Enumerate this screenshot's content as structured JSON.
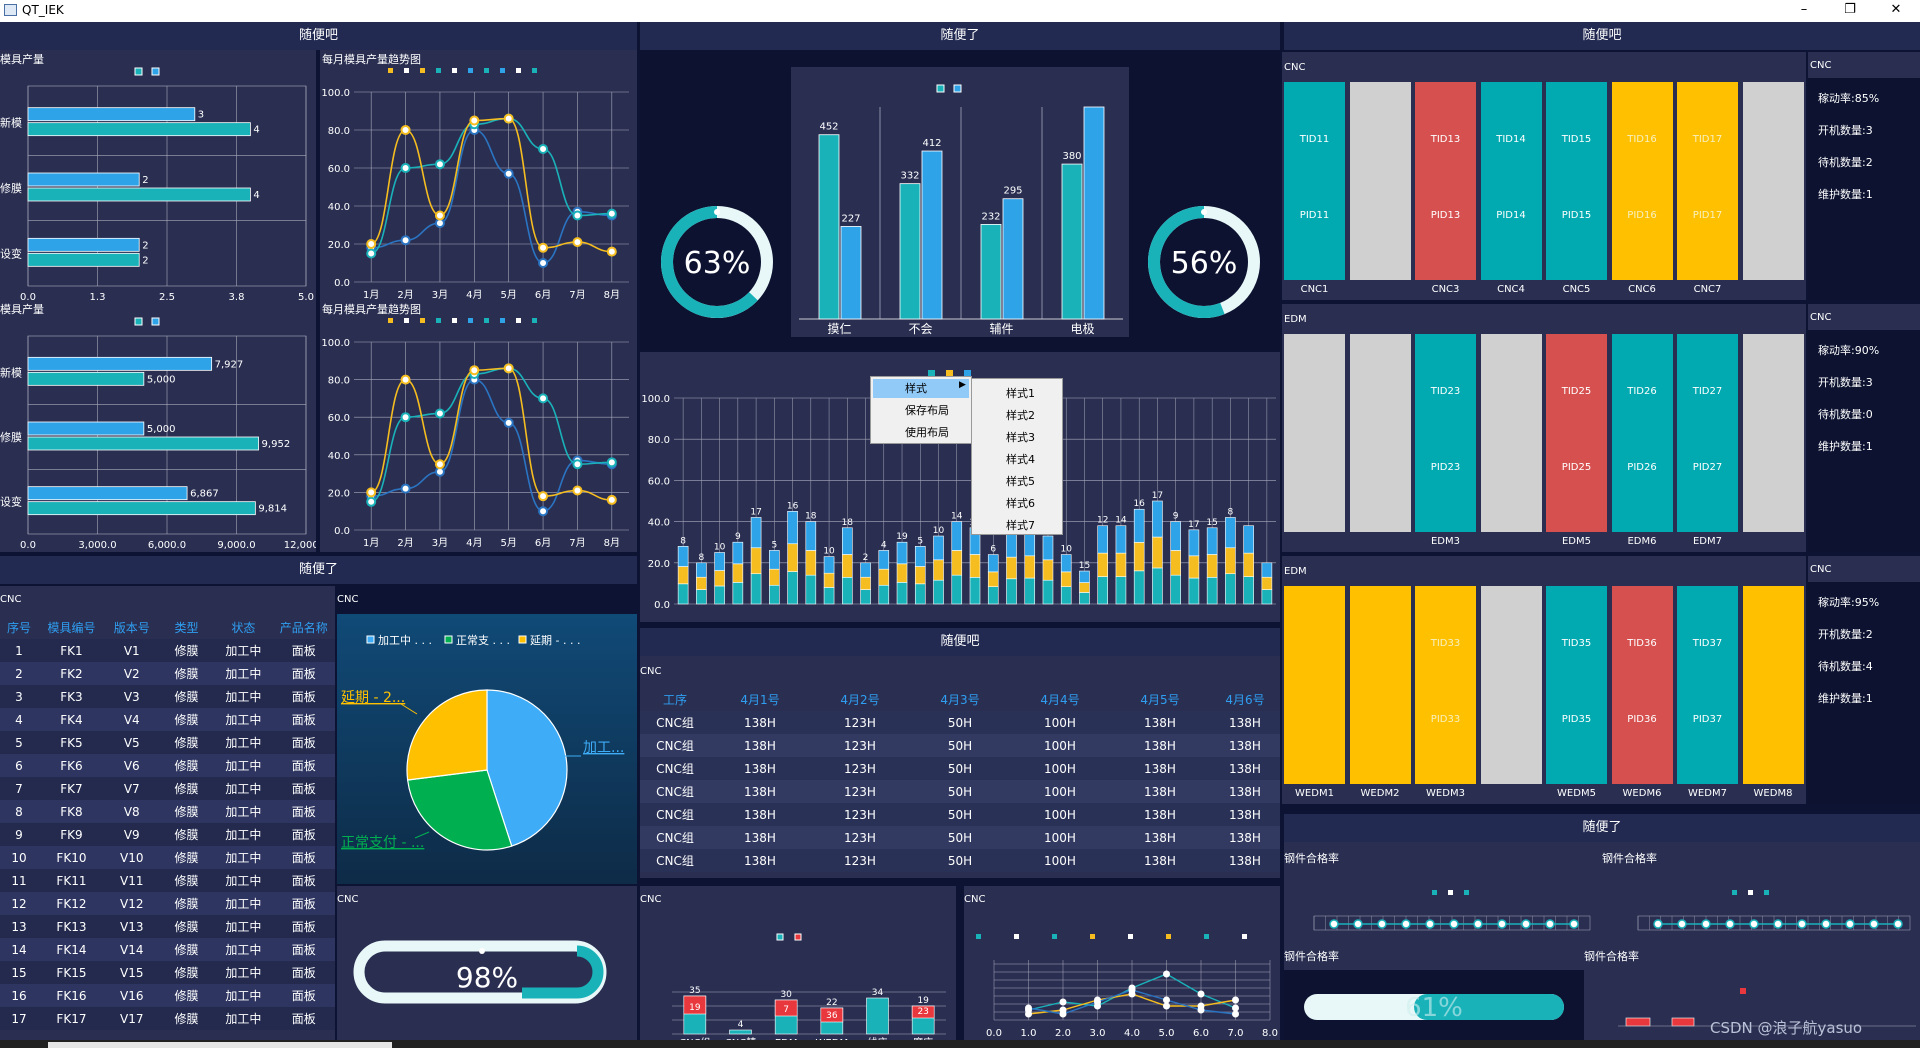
{
  "window": {
    "title": "QT_IEK",
    "minimize": "–",
    "maximize": "❐",
    "close": "✕"
  },
  "panels": {
    "left_top": "随便吧",
    "mid_top": "随便了",
    "right_top": "随便吧",
    "left_mid": "随便了",
    "mid_mid": "随便吧",
    "right_mid": "随便了"
  },
  "left": {
    "bar1": {
      "title": "模具产量",
      "cats": [
        "新模",
        "修膜",
        "设变"
      ],
      "a": [
        3,
        2,
        2
      ],
      "b": [
        4,
        4,
        2
      ],
      "a_lab": [
        "3",
        "2",
        "2"
      ],
      "b_lab": [
        "4",
        "4",
        "2"
      ],
      "ticks": [
        "0.0",
        "1.3",
        "2.5",
        "3.8",
        "5.0"
      ],
      "max": 5
    },
    "bar2": {
      "title": "模具产量",
      "cats": [
        "新模",
        "修膜",
        "设变"
      ],
      "a": [
        7927,
        5000,
        6867
      ],
      "b": [
        5000,
        9952,
        9814
      ],
      "a_lab": [
        "7,927",
        "5,000",
        "6,867"
      ],
      "b_lab": [
        "5,000",
        "9,952",
        "9,814"
      ],
      "ticks": [
        "0.0",
        "3,000.0",
        "6,000.0",
        "9,000.0",
        "12,000.0"
      ],
      "max": 12000
    },
    "line1": {
      "title": "每月模具产量趋势图"
    },
    "line2": {
      "title": "每月模具产量趋势图"
    }
  },
  "chart_data": [
    {
      "type": "bar",
      "title": "模具产量",
      "categories": [
        "新模",
        "修膜",
        "设变"
      ],
      "series": [
        {
          "values": [
            3,
            2,
            2
          ]
        },
        {
          "values": [
            4,
            4,
            2
          ]
        }
      ],
      "xlim": [
        0,
        5
      ]
    },
    {
      "type": "bar",
      "title": "模具产量",
      "categories": [
        "新模",
        "修膜",
        "设变"
      ],
      "series": [
        {
          "values": [
            7927,
            5000,
            6867
          ]
        },
        {
          "values": [
            5000,
            9952,
            9814
          ]
        }
      ],
      "xlim": [
        0,
        12000
      ]
    },
    {
      "type": "line",
      "title": "每月模具产量趋势图",
      "x": [
        "1月",
        "2月",
        "3月",
        "4月",
        "5月",
        "6月",
        "7月",
        "8月"
      ],
      "series": [
        {
          "values": [
            18,
            22,
            31,
            80,
            57,
            10,
            37,
            35
          ]
        },
        {
          "values": [
            15,
            60,
            62,
            83,
            86,
            70,
            35,
            36
          ]
        },
        {
          "values": [
            20,
            80,
            35,
            85,
            86,
            18,
            21,
            16
          ]
        }
      ],
      "ylim": [
        0,
        100
      ]
    },
    {
      "type": "bar",
      "categories": [
        "摸仁",
        "不会",
        "辅件",
        "电极"
      ],
      "series": [
        {
          "values": [
            452,
            332,
            232,
            380
          ]
        },
        {
          "values": [
            227,
            412,
            295,
            520
          ]
        }
      ]
    },
    {
      "type": "pie",
      "labels": [
        "加工中",
        "正常支付",
        "延期"
      ],
      "values": [
        45,
        28,
        27
      ]
    }
  ],
  "gauges": {
    "g1": "63%",
    "g2": "56%",
    "g3": "98%",
    "g4": "61%"
  },
  "mid_bar": {
    "cats": [
      "摸仁",
      "不会",
      "辅件",
      "电极"
    ],
    "a": [
      452,
      332,
      232,
      380
    ],
    "b": [
      227,
      412,
      295,
      520
    ],
    "a_lab": [
      "452",
      "332",
      "232",
      "380"
    ],
    "b_lab": [
      "227",
      "412",
      "295",
      ""
    ]
  },
  "stack": {
    "ticks": [
      "0.0",
      "20.0",
      "40.0",
      "60.0",
      "80.0",
      "100.0"
    ],
    "labels": [
      "8",
      "8",
      "10",
      "9",
      "17",
      "5",
      "16",
      "18",
      "10",
      "18",
      "2",
      "4",
      "19",
      "5",
      "10",
      "14",
      "12",
      "6",
      "16",
      "10",
      "18",
      "10",
      "15",
      "12",
      "14",
      "16",
      "17",
      "9",
      "17",
      "15",
      "8"
    ],
    "hmax": [
      28,
      20,
      25,
      30,
      42,
      26,
      45,
      40,
      23,
      37,
      20,
      26,
      30,
      28,
      33,
      40,
      37,
      24,
      35,
      36,
      33,
      24,
      16,
      38,
      38,
      46,
      50,
      40,
      36,
      37,
      42,
      38,
      20
    ]
  },
  "menu": {
    "items": [
      "样式",
      "保存布局",
      "使用布局"
    ],
    "sub": [
      "样式1",
      "样式2",
      "样式3",
      "样式4",
      "样式5",
      "样式6",
      "样式7"
    ]
  },
  "table1": {
    "label": "CNC",
    "headers": [
      "序号",
      "模具编号",
      "版本号",
      "类型",
      "状态",
      "产品名称"
    ],
    "rows": [
      [
        "1",
        "FK1",
        "V1",
        "修膜",
        "加工中",
        "面板"
      ],
      [
        "2",
        "FK2",
        "V2",
        "修膜",
        "加工中",
        "面板"
      ],
      [
        "3",
        "FK3",
        "V3",
        "修膜",
        "加工中",
        "面板"
      ],
      [
        "4",
        "FK4",
        "V4",
        "修膜",
        "加工中",
        "面板"
      ],
      [
        "5",
        "FK5",
        "V5",
        "修膜",
        "加工中",
        "面板"
      ],
      [
        "6",
        "FK6",
        "V6",
        "修膜",
        "加工中",
        "面板"
      ],
      [
        "7",
        "FK7",
        "V7",
        "修膜",
        "加工中",
        "面板"
      ],
      [
        "8",
        "FK8",
        "V8",
        "修膜",
        "加工中",
        "面板"
      ],
      [
        "9",
        "FK9",
        "V9",
        "修膜",
        "加工中",
        "面板"
      ],
      [
        "10",
        "FK10",
        "V10",
        "修膜",
        "加工中",
        "面板"
      ],
      [
        "11",
        "FK11",
        "V11",
        "修膜",
        "加工中",
        "面板"
      ],
      [
        "12",
        "FK12",
        "V12",
        "修膜",
        "加工中",
        "面板"
      ],
      [
        "13",
        "FK13",
        "V13",
        "修膜",
        "加工中",
        "面板"
      ],
      [
        "14",
        "FK14",
        "V14",
        "修膜",
        "加工中",
        "面板"
      ],
      [
        "15",
        "FK15",
        "V15",
        "修膜",
        "加工中",
        "面板"
      ],
      [
        "16",
        "FK16",
        "V16",
        "修膜",
        "加工中",
        "面板"
      ],
      [
        "17",
        "FK17",
        "V17",
        "修膜",
        "加工中",
        "面板"
      ]
    ]
  },
  "pie": {
    "label": "CNC",
    "legend": [
      "加工中 . . .",
      "正常支 . . .",
      "延期 - . . ."
    ],
    "l1": "延期 - 2...",
    "l2": "加工...",
    "l3": "正常支付 - ..."
  },
  "table2": {
    "label": "CNC",
    "headers": [
      "工序",
      "4月1号",
      "4月2号",
      "4月3号",
      "4月4号",
      "4月5号",
      "4月6号"
    ],
    "rows": [
      [
        "CNC组",
        "138H",
        "123H",
        "50H",
        "100H",
        "138H",
        "138H"
      ],
      [
        "CNC组",
        "138H",
        "123H",
        "50H",
        "100H",
        "138H",
        "138H"
      ],
      [
        "CNC组",
        "138H",
        "123H",
        "50H",
        "100H",
        "138H",
        "138H"
      ],
      [
        "CNC组",
        "138H",
        "123H",
        "50H",
        "100H",
        "138H",
        "138H"
      ],
      [
        "CNC组",
        "138H",
        "123H",
        "50H",
        "100H",
        "138H",
        "138H"
      ],
      [
        "CNC组",
        "138H",
        "123H",
        "50H",
        "100H",
        "138H",
        "138H"
      ],
      [
        "CNC组",
        "138H",
        "123H",
        "50H",
        "100H",
        "138H",
        "138H"
      ]
    ]
  },
  "small_labels": {
    "cnc_a": "CNC",
    "cnc_b": "CNC",
    "cnc_c": "CNC",
    "cnc_d": "CNC"
  },
  "small_bar": {
    "cats": [
      "CNC组",
      "CNC精",
      "EDM",
      "WEDM",
      "线床",
      "磨床"
    ],
    "top": [
      "35",
      "4",
      "30",
      "22",
      "34",
      "19"
    ],
    "red": [
      "19",
      "",
      "7",
      "36",
      "",
      "23"
    ]
  },
  "small_line": {
    "ticks": [
      "0.0",
      "1.0",
      "2.0",
      "3.0",
      "4.0",
      "5.0",
      "6.0",
      "7.0",
      "8.0"
    ]
  },
  "machines": {
    "cnc": {
      "label": "CNC",
      "tops": [
        "TID11",
        "",
        "TID13",
        "TID14",
        "TID15",
        "TID16",
        "TID17",
        ""
      ],
      "bots": [
        "PID11",
        "",
        "PID13",
        "PID14",
        "PID15",
        "PID16",
        "PID17",
        ""
      ],
      "names": [
        "CNC1",
        "",
        "CNC3",
        "CNC4",
        "CNC5",
        "CNC6",
        "CNC7",
        ""
      ],
      "colors": [
        "#00aab0",
        "#d0d0d0",
        "#d5504f",
        "#00aab0",
        "#00aab0",
        "#ffc000",
        "#ffc000",
        "#d0d0d0"
      ],
      "stats": {
        "label": "CNC",
        "s1": "稼动率:85%",
        "s2": "开机数量:3",
        "s3": "待机数量:2",
        "s4": "维护数量:1"
      }
    },
    "edm": {
      "label": "EDM",
      "tops": [
        "",
        "",
        "TID23",
        "",
        "TID25",
        "TID26",
        "TID27",
        ""
      ],
      "bots": [
        "",
        "",
        "PID23",
        "",
        "PID25",
        "PID26",
        "PID27",
        ""
      ],
      "names": [
        "",
        "",
        "EDM3",
        "",
        "EDM5",
        "EDM6",
        "EDM7",
        ""
      ],
      "colors": [
        "#d0d0d0",
        "#d0d0d0",
        "#00aab0",
        "#d0d0d0",
        "#d5504f",
        "#00aab0",
        "#00aab0",
        "#d0d0d0"
      ],
      "stats": {
        "label": "CNC",
        "s1": "稼动率:90%",
        "s2": "开机数量:3",
        "s3": "待机数量:0",
        "s4": "维护数量:1"
      }
    },
    "wedm": {
      "label": "EDM",
      "tops": [
        "",
        "",
        "TID33",
        "",
        "TID35",
        "TID36",
        "TID37",
        ""
      ],
      "bots": [
        "",
        "",
        "PID33",
        "",
        "PID35",
        "PID36",
        "PID37",
        ""
      ],
      "names": [
        "WEDM1",
        "WEDM2",
        "WEDM3",
        "",
        "WEDM5",
        "WEDM6",
        "WEDM7",
        "WEDM8"
      ],
      "colors": [
        "#ffc000",
        "#ffc000",
        "#ffc000",
        "#d0d0d0",
        "#00aab0",
        "#d5504f",
        "#00aab0",
        "#ffc000"
      ],
      "stats": {
        "label": "CNC",
        "s1": "稼动率:95%",
        "s2": "开机数量:2",
        "s3": "待机数量:4",
        "s4": "维护数量:1"
      }
    }
  },
  "quality": {
    "q1": "钢件合格率",
    "q2": "钢件合格率",
    "q3": "钢件合格率",
    "q4": "钢件合格率"
  },
  "watermark": "CSDN @浪子航yasuo",
  "colors": {
    "teal": "#1ab2b9",
    "blue": "#2ea3e8",
    "yellow": "#f5bd1f",
    "red": "#e8383d"
  }
}
